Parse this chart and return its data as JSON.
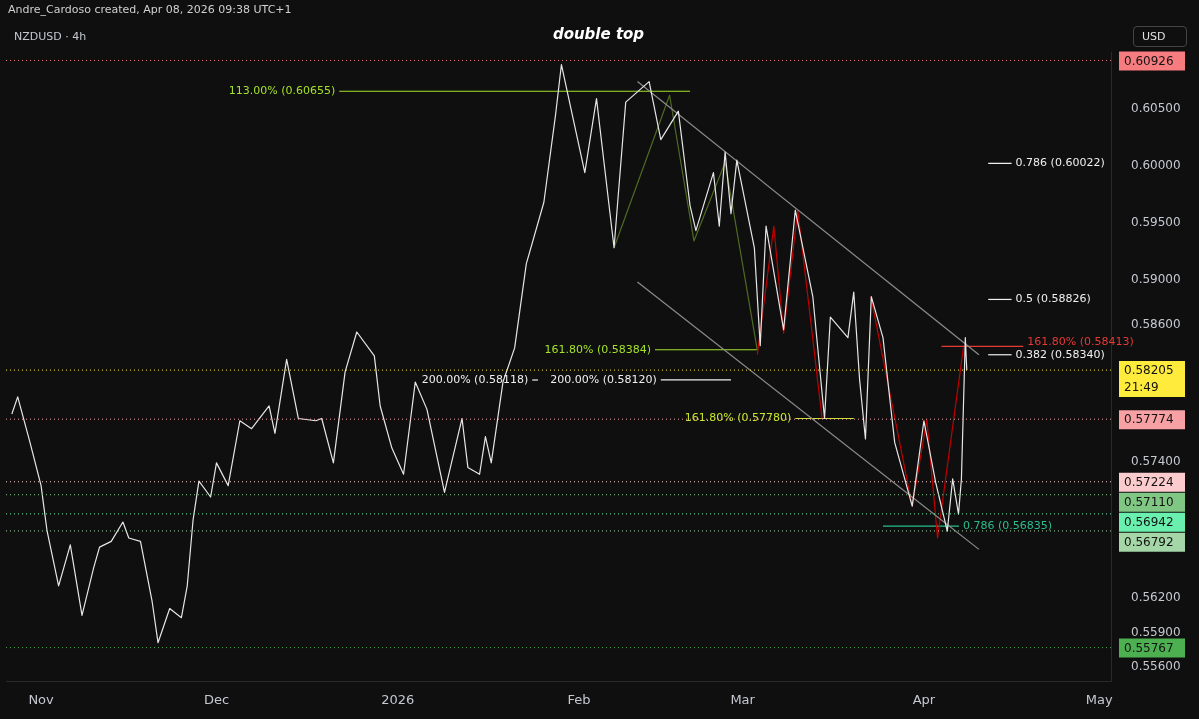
{
  "chart_data": {
    "type": "line",
    "title": "double top",
    "annotations": [
      "Andre_Cardoso created, Apr 08, 2026 09:38 UTC+1",
      "NZDUSD · 4h",
      "USD"
    ],
    "xlim": [
      "2025-10-26",
      "2026-05-03"
    ],
    "xticks": [
      {
        "value": "2025-11-01",
        "label": "Nov"
      },
      {
        "value": "2025-12-01",
        "label": "Dec"
      },
      {
        "value": "2026-01-01",
        "label": "2026"
      },
      {
        "value": "2026-02-01",
        "label": "Feb"
      },
      {
        "value": "2026-03-01",
        "label": "Mar"
      },
      {
        "value": "2026-04-01",
        "label": "Apr"
      },
      {
        "value": "2026-05-01",
        "label": "May"
      }
    ],
    "ylim": [
      0.5547,
      0.61
    ],
    "yticks": [
      {
        "value": 0.556,
        "label": "0.55600"
      },
      {
        "value": 0.559,
        "label": "0.55900"
      },
      {
        "value": 0.562,
        "label": "0.56200"
      },
      {
        "value": 0.574,
        "label": "0.57400"
      },
      {
        "value": 0.586,
        "label": "0.58600"
      },
      {
        "value": 0.59,
        "label": "0.59000"
      },
      {
        "value": 0.595,
        "label": "0.59500"
      },
      {
        "value": 0.6,
        "label": "0.60000"
      },
      {
        "value": 0.605,
        "label": "0.60500"
      }
    ],
    "grid": false,
    "legend": false,
    "marker": "none",
    "line_style": "solid",
    "series": [
      {
        "type": "line",
        "color": "#e6e6e6",
        "x": [
          "2025-10-27",
          "2025-10-28",
          "2025-10-30",
          "2025-11-01",
          "2025-11-02",
          "2025-11-04",
          "2025-11-06",
          "2025-11-08",
          "2025-11-10",
          "2025-11-11",
          "2025-11-13",
          "2025-11-15",
          "2025-11-16",
          "2025-11-18",
          "2025-11-20",
          "2025-11-21",
          "2025-11-23",
          "2025-11-25",
          "2025-11-26",
          "2025-11-27",
          "2025-11-28",
          "2025-11-30",
          "2025-12-01",
          "2025-12-03",
          "2025-12-05",
          "2025-12-07",
          "2025-12-10",
          "2025-12-11",
          "2025-12-13",
          "2025-12-15",
          "2025-12-18",
          "2025-12-19",
          "2025-12-21",
          "2025-12-23",
          "2025-12-25",
          "2025-12-28",
          "2025-12-29",
          "2025-12-31",
          "2026-01-02",
          "2026-01-04",
          "2026-01-06",
          "2026-01-09",
          "2026-01-12",
          "2026-01-13",
          "2026-01-15",
          "2026-01-16",
          "2026-01-17",
          "2026-01-19",
          "2026-01-21",
          "2026-01-23",
          "2026-01-26",
          "2026-01-28",
          "2026-01-29",
          "2026-02-02",
          "2026-02-04",
          "2026-02-07",
          "2026-02-09",
          "2026-02-13",
          "2026-02-15",
          "2026-02-18",
          "2026-02-20",
          "2026-02-21",
          "2026-02-24",
          "2026-02-25",
          "2026-02-26",
          "2026-02-27",
          "2026-02-28",
          "2026-03-03",
          "2026-03-04",
          "2026-03-05",
          "2026-03-08",
          "2026-03-10",
          "2026-03-13",
          "2026-03-15",
          "2026-03-16",
          "2026-03-19",
          "2026-03-20",
          "2026-03-21",
          "2026-03-22",
          "2026-03-23",
          "2026-03-25",
          "2026-03-27",
          "2026-03-30",
          "2026-04-01",
          "2026-04-03",
          "2026-04-05",
          "2026-04-05T22:00",
          "2026-04-06T22:00",
          "2026-04-07T10:00",
          "2026-04-08T02:00",
          "2026-04-08T08:00"
        ],
        "values": [
          0.5782,
          0.5797,
          0.5759,
          0.5719,
          0.568,
          0.5631,
          0.5667,
          0.5605,
          0.5647,
          0.5665,
          0.567,
          0.5687,
          0.5673,
          0.567,
          0.5617,
          0.5581,
          0.5611,
          0.5603,
          0.5631,
          0.5689,
          0.5723,
          0.5709,
          0.5739,
          0.5719,
          0.5776,
          0.5769,
          0.5789,
          0.5765,
          0.583,
          0.5778,
          0.5776,
          0.5778,
          0.5739,
          0.5819,
          0.5854,
          0.5833,
          0.5789,
          0.5752,
          0.5729,
          0.581,
          0.5786,
          0.5713,
          0.5778,
          0.5735,
          0.5729,
          0.5762,
          0.5739,
          0.581,
          0.584,
          0.5914,
          0.5968,
          0.6045,
          0.6089,
          0.5994,
          0.6059,
          0.5928,
          0.6056,
          0.6074,
          0.6023,
          0.6048,
          0.5965,
          0.5943,
          0.5994,
          0.5947,
          0.6012,
          0.5958,
          0.6005,
          0.5928,
          0.5842,
          0.5947,
          0.5856,
          0.5961,
          0.5885,
          0.5778,
          0.5867,
          0.5849,
          0.5889,
          0.5812,
          0.576,
          0.5885,
          0.5849,
          0.5757,
          0.5701,
          0.5776,
          0.5722,
          0.5679,
          0.5725,
          0.5694,
          0.5725,
          0.5849,
          0.58205
        ]
      },
      {
        "type": "line",
        "color": "#8c8c8c",
        "x": [
          "2026-02-11",
          "2026-04-10T10:00"
        ],
        "values": [
          0.6074,
          0.5834
        ]
      },
      {
        "type": "line",
        "color": "#8c8c8c",
        "x": [
          "2026-02-11",
          "2026-04-10T10:00"
        ],
        "values": [
          0.5898,
          0.5663
        ]
      },
      {
        "type": "line",
        "color": "#4f6b22",
        "x": [
          "2026-02-07",
          "2026-02-16T12:00",
          "2026-02-20T16:00",
          "2026-02-26",
          "2026-03-03T12:00"
        ],
        "values": [
          0.5928,
          0.6062,
          0.5934,
          0.6003,
          0.5838
        ]
      },
      {
        "type": "line",
        "color": "#c00000",
        "x": [
          "2026-03-03T12:00",
          "2026-03-06T08:00",
          "2026-03-08",
          "2026-03-10T10:00",
          "2026-03-14T14:00"
        ],
        "values": [
          0.5834,
          0.5947,
          0.5853,
          0.5961,
          0.5778
        ]
      },
      {
        "type": "line",
        "color": "#c00000",
        "x": [
          "2026-03-22T22:00",
          "2026-03-30",
          "2026-04-01T12:00",
          "2026-04-03T08:00",
          "2026-04-07T18:00"
        ],
        "values": [
          0.5885,
          0.5701,
          0.5777,
          0.5673,
          0.584
        ]
      },
      {
        "name": "113.00% (0.60655)",
        "color": "#a5e32a",
        "x": [
          "2025-12-22",
          "2026-02-20"
        ],
        "values": [
          0.60655,
          0.60655
        ]
      },
      {
        "name": "161.80% (0.58384)",
        "color": "#a5e32a",
        "x": [
          "2026-02-14",
          "2026-03-03T12:00"
        ],
        "values": [
          0.58384,
          0.58384
        ]
      },
      {
        "name": "200.00% (0.58118)",
        "color": "#f0f0f0",
        "x": [
          "2026-01-24",
          "2026-01-25"
        ],
        "values": [
          0.58118,
          0.58118
        ]
      },
      {
        "name": "200.00% (0.58120)",
        "color": "#f0f0f0",
        "x": [
          "2026-02-15",
          "2026-02-27"
        ],
        "values": [
          0.5812,
          0.5812
        ]
      },
      {
        "name": "161.80% (0.57780)",
        "color": "#c6e82a",
        "x": [
          "2026-03-10",
          "2026-03-20"
        ],
        "values": [
          0.5778,
          0.5778
        ]
      },
      {
        "name": "0.786 (0.60022)",
        "color": "#f0f0f0",
        "x": [
          "2026-04-12",
          "2026-04-16"
        ],
        "values": [
          0.60022,
          0.60022
        ]
      },
      {
        "name": "0.5 (0.58826)",
        "color": "#f0f0f0",
        "x": [
          "2026-04-12",
          "2026-04-16"
        ],
        "values": [
          0.58826,
          0.58826
        ]
      },
      {
        "name": "0.382 (0.58340)",
        "color": "#f0f0f0",
        "x": [
          "2026-04-12",
          "2026-04-16"
        ],
        "values": [
          0.5834,
          0.5834
        ]
      },
      {
        "name": "161.80% (0.58413)",
        "color": "#e53935",
        "x": [
          "2026-04-04",
          "2026-04-18"
        ],
        "values": [
          0.58413,
          0.58413
        ]
      },
      {
        "name": "0.786 (0.56835)",
        "color": "#2bbd8e",
        "x": [
          "2026-03-25",
          "2026-04-07"
        ],
        "values": [
          0.56835,
          0.56835
        ]
      }
    ],
    "ref_lines": [
      {
        "axis": "y",
        "value": 0.60926,
        "label": "0.60926",
        "color": "#f77c80",
        "line_style": "dotted"
      },
      {
        "axis": "y",
        "value": 0.58205,
        "label": "0.58205\n21:49",
        "color": "#ffeb3b",
        "line_style": "dotted"
      },
      {
        "axis": "y",
        "value": 0.57774,
        "label": "0.57774",
        "color": "#f7a1a4",
        "line_style": "dotted"
      },
      {
        "axis": "y",
        "value": 0.57224,
        "label": "0.57224",
        "color": "#fccbcd",
        "line_style": "dotted"
      },
      {
        "axis": "y",
        "value": 0.5711,
        "label": "0.57110",
        "color": "#81c784",
        "line_style": "dotted"
      },
      {
        "axis": "y",
        "value": 0.56942,
        "label": "0.56942",
        "color": "#69f0ae",
        "line_style": "dotted"
      },
      {
        "axis": "y",
        "value": 0.56792,
        "label": "0.56792",
        "color": "#a5d6a7",
        "line_style": "dotted"
      },
      {
        "axis": "y",
        "value": 0.55767,
        "label": "0.55767",
        "color": "#4caf50",
        "line_style": "dotted"
      }
    ]
  }
}
